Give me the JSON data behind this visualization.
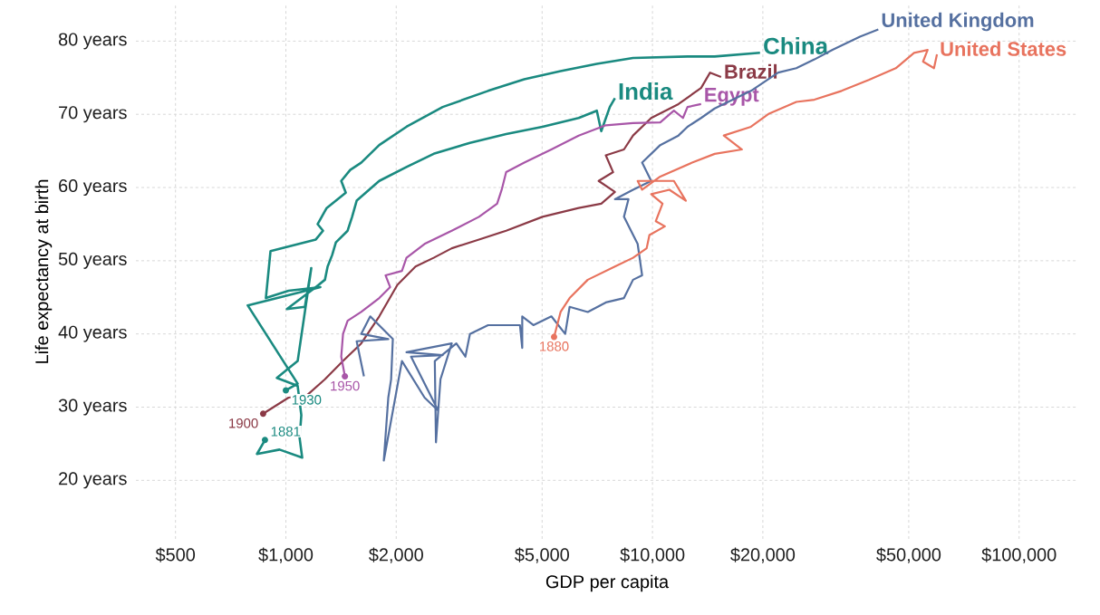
{
  "chart_data": {
    "type": "line",
    "xlabel": "GDP per capita",
    "ylabel": "Life expectancy at birth",
    "log": "x",
    "grid": true,
    "xlim": [
      390,
      145000
    ],
    "ylim": [
      12,
      85
    ],
    "xticks": [
      {
        "value": 500,
        "label": "$500"
      },
      {
        "value": 1000,
        "label": "$1,000"
      },
      {
        "value": 2000,
        "label": "$2,000"
      },
      {
        "value": 5000,
        "label": "$5,000"
      },
      {
        "value": 10000,
        "label": "$10,000"
      },
      {
        "value": 20000,
        "label": "$20,000"
      },
      {
        "value": 50000,
        "label": "$50,000"
      },
      {
        "value": 100000,
        "label": "$100,000"
      }
    ],
    "yticks": [
      {
        "value": 20,
        "label": "20 years"
      },
      {
        "value": 30,
        "label": "30 years"
      },
      {
        "value": 40,
        "label": "40 years"
      },
      {
        "value": 50,
        "label": "50 years"
      },
      {
        "value": 60,
        "label": "60 years"
      },
      {
        "value": 70,
        "label": "70 years"
      },
      {
        "value": 80,
        "label": "80 years"
      }
    ],
    "series": [
      {
        "name": "India",
        "color": "#1a8a80",
        "x": [
          877,
          834,
          961,
          1108,
          1090,
          1102,
          1077,
          945,
          1077,
          1173,
          1127,
          1006,
          1207,
          1278,
          1300,
          1338,
          1369,
          1474,
          1516,
          1560,
          1798,
          2133,
          2530,
          3178,
          3990,
          5010,
          6290,
          7050,
          7250,
          7650,
          7900
        ],
        "values": [
          25.5,
          23.6,
          24.2,
          23.1,
          25.8,
          28.9,
          32.9,
          34.0,
          36.3,
          49.0,
          43.7,
          43.4,
          46.4,
          47.4,
          49.2,
          50.8,
          52.5,
          54.1,
          56.0,
          58.2,
          60.9,
          62.8,
          64.6,
          66.1,
          67.3,
          68.3,
          69.5,
          70.5,
          67.7,
          71.0,
          72.2
        ]
      },
      {
        "name": "China",
        "color": "#1a8a80",
        "x": [
          1000,
          1077,
          787,
          1242,
          1017,
          882,
          908,
          1207,
          1263,
          1221,
          1292,
          1457,
          1416,
          1498,
          1605,
          1798,
          2133,
          2678,
          3561,
          4470,
          5615,
          7050,
          8850,
          12460,
          14780,
          19650
        ],
        "values": [
          32.3,
          33.2,
          43.9,
          46.4,
          45.9,
          44.9,
          51.3,
          52.9,
          54.1,
          55.0,
          57.2,
          59.3,
          60.9,
          62.4,
          63.4,
          65.8,
          68.3,
          71.0,
          73.2,
          74.8,
          75.9,
          76.9,
          77.7,
          77.9,
          77.9,
          78.4
        ]
      },
      {
        "name": "Brazil",
        "color": "#8b3a46",
        "x": [
          867,
          1017,
          1140,
          1278,
          1432,
          1605,
          1798,
          2015,
          2258,
          2530,
          2835,
          3364,
          3990,
          5010,
          6290,
          7250,
          7900,
          7130,
          7810,
          7460,
          8360,
          8850,
          9920,
          11770,
          13570,
          14360,
          15390
        ],
        "values": [
          29.1,
          31.3,
          31.6,
          33.8,
          36.3,
          38.7,
          42.4,
          46.7,
          49.2,
          50.4,
          51.7,
          52.9,
          54.1,
          56.0,
          57.2,
          57.8,
          59.4,
          60.9,
          62.1,
          64.4,
          65.2,
          67.1,
          69.5,
          71.4,
          73.6,
          75.7,
          75.1
        ]
      },
      {
        "name": "Egypt",
        "color": "#a856a8",
        "x": [
          1449,
          1416,
          1432,
          1474,
          1605,
          1798,
          1925,
          1871,
          2073,
          2133,
          2390,
          2835,
          3364,
          3770,
          3880,
          3990,
          4470,
          5300,
          6290,
          7460,
          8850,
          10500,
          11440,
          12110,
          12460,
          13570
        ],
        "values": [
          34.2,
          36.9,
          40.0,
          41.8,
          43.0,
          44.9,
          46.4,
          48.0,
          48.6,
          50.4,
          52.3,
          54.1,
          56.0,
          57.8,
          59.7,
          62.1,
          63.4,
          65.2,
          67.1,
          68.5,
          68.8,
          68.9,
          70.5,
          69.5,
          71.0,
          71.4
        ]
      },
      {
        "name": "United Kingdom",
        "color": "#5570a0",
        "x": [
          1633,
          1560,
          1903,
          1605,
          1699,
          1958,
          1937,
          1903,
          1850,
          2073,
          2390,
          2604,
          2195,
          2678,
          2133,
          2835,
          2641,
          2567,
          2548,
          2918,
          3088,
          3178,
          3561,
          3990,
          4350,
          4413,
          4413,
          4733,
          5300,
          5780,
          5943,
          6660,
          7460,
          8360,
          8850,
          9370,
          9110,
          8360,
          8600,
          7900,
          8850,
          9920,
          9370,
          10500,
          11770,
          12460,
          13570,
          14780,
          16560,
          18560,
          22020,
          24680,
          27650,
          30980,
          36800,
          41300
        ],
        "values": [
          34.2,
          39.0,
          39.3,
          40.0,
          42.4,
          39.3,
          33.8,
          31.3,
          22.7,
          36.3,
          31.3,
          29.5,
          36.9,
          37.1,
          37.5,
          38.7,
          33.8,
          25.2,
          36.3,
          38.7,
          36.9,
          40.0,
          41.2,
          41.2,
          41.2,
          38.1,
          42.4,
          41.2,
          42.4,
          40.0,
          43.7,
          43.0,
          44.3,
          44.9,
          47.4,
          48.0,
          52.3,
          56.0,
          58.4,
          58.4,
          59.7,
          60.9,
          63.4,
          65.8,
          67.1,
          68.3,
          69.5,
          70.8,
          72.0,
          73.2,
          75.7,
          76.3,
          77.5,
          78.8,
          80.6,
          81.6
        ]
      },
      {
        "name": "United States",
        "color": "#e8735e",
        "x": [
          5390,
          5615,
          5943,
          6660,
          7900,
          8850,
          9640,
          9810,
          10810,
          10210,
          10650,
          9920,
          11120,
          12330,
          11440,
          9110,
          9370,
          10500,
          12830,
          14780,
          17540,
          15650,
          18560,
          20800,
          24680,
          27650,
          32800,
          38900,
          46100,
          51700,
          56300,
          54700,
          58600,
          59700
        ],
        "values": [
          39.6,
          43.0,
          44.9,
          47.4,
          49.2,
          50.4,
          51.7,
          53.5,
          54.7,
          55.4,
          57.8,
          59.1,
          59.7,
          58.2,
          60.9,
          60.9,
          59.7,
          61.5,
          63.4,
          64.6,
          65.2,
          67.1,
          68.3,
          70.1,
          71.7,
          72.0,
          73.2,
          74.7,
          76.3,
          78.4,
          78.8,
          77.2,
          76.3,
          78.2
        ]
      }
    ],
    "annotations": [
      {
        "text": "1881",
        "x": 877,
        "y": 25.5
      },
      {
        "text": "1930",
        "x": 1000,
        "y": 32.3
      },
      {
        "text": "1900",
        "x": 867,
        "y": 29.1
      },
      {
        "text": "1950",
        "x": 1449,
        "y": 34.2
      },
      {
        "text": "1880",
        "x": 5390,
        "y": 39.6
      }
    ]
  }
}
